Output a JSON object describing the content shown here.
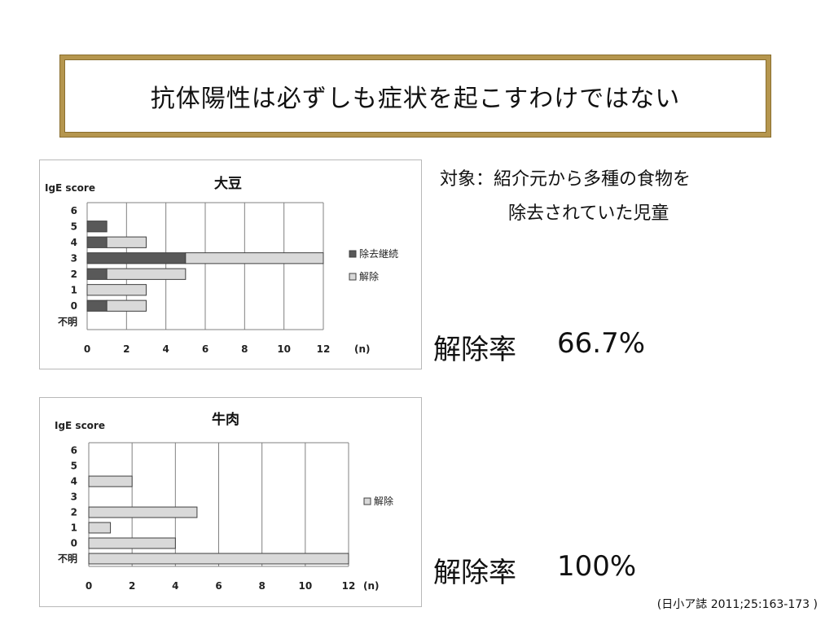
{
  "slide": {
    "title": "抗体陽性は必ずしも症状を起こすわけではない",
    "subject_line1": "対象：紹介元から多種の食物を",
    "subject_line2": "除去されていた児童",
    "rate_soy_label": "解除率",
    "rate_soy_value": "66.7%",
    "rate_beef_label": "解除率",
    "rate_beef_value": "100%",
    "citation": "(日小ア誌 2011;25:163-173 )"
  },
  "colors": {
    "frame_border": "#b5964e",
    "bar_continue": "#595959",
    "bar_release": "#d9d9d9",
    "bar_stroke": "#404040",
    "grid": "#808080"
  },
  "chart_data": [
    {
      "type": "bar",
      "orientation": "horizontal",
      "stacked": true,
      "title": "大豆",
      "ylabel": "IgE score",
      "xlabel": "(n)",
      "categories": [
        "6",
        "5",
        "4",
        "3",
        "2",
        "1",
        "0",
        "不明"
      ],
      "xlim": [
        0,
        12
      ],
      "xticks": [
        "0",
        "2",
        "4",
        "6",
        "8",
        "10",
        "12"
      ],
      "grid": true,
      "legend_position": "right",
      "series": [
        {
          "name": "除去継続",
          "color": "#595959",
          "values": [
            0,
            1,
            1,
            5,
            1,
            0,
            1,
            0
          ]
        },
        {
          "name": "解除",
          "color": "#d9d9d9",
          "values": [
            0,
            0,
            2,
            7,
            4,
            3,
            2,
            0
          ]
        }
      ]
    },
    {
      "type": "bar",
      "orientation": "horizontal",
      "stacked": true,
      "title": "牛肉",
      "ylabel": "IgE score",
      "xlabel": "(n)",
      "categories": [
        "6",
        "5",
        "4",
        "3",
        "2",
        "1",
        "0",
        "不明"
      ],
      "xlim": [
        0,
        12
      ],
      "xticks": [
        "0",
        "2",
        "4",
        "6",
        "8",
        "10",
        "12"
      ],
      "grid": true,
      "legend_position": "right",
      "series": [
        {
          "name": "解除",
          "color": "#d9d9d9",
          "values": [
            0,
            0,
            2,
            0,
            5,
            1,
            4,
            12
          ]
        }
      ]
    }
  ]
}
